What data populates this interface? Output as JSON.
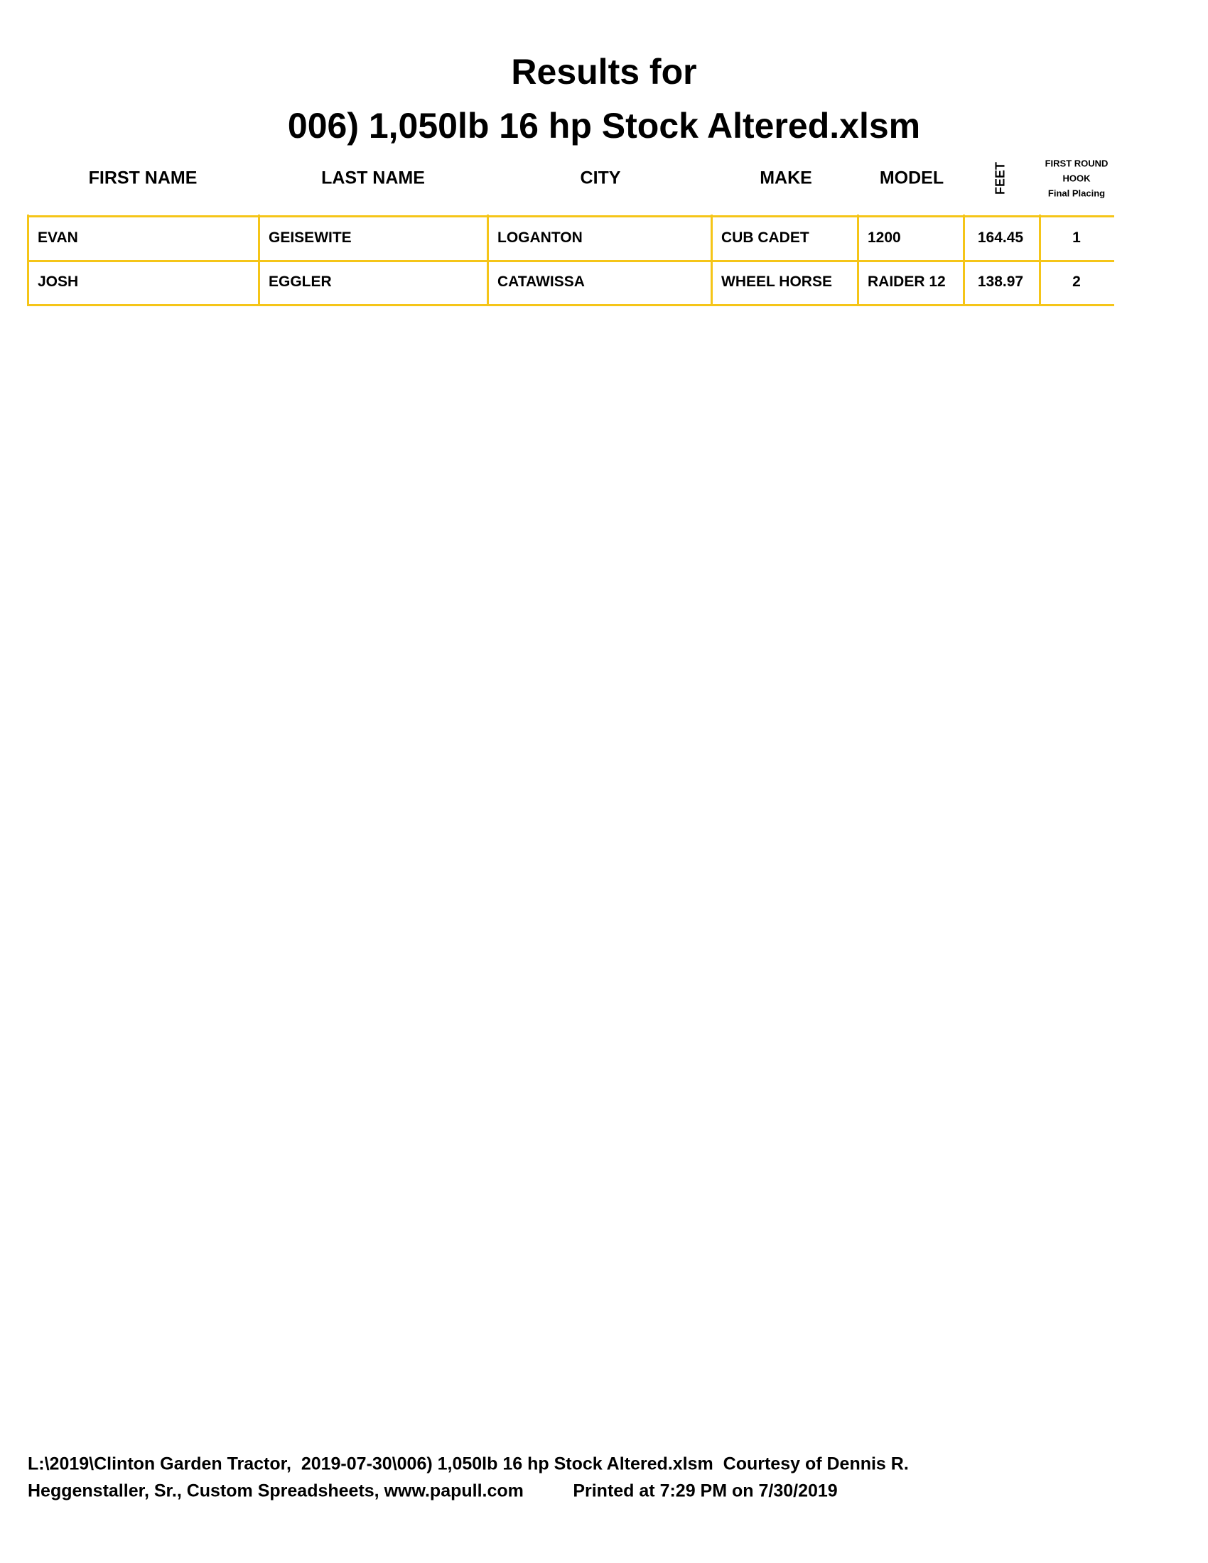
{
  "header": {
    "title_lines": [
      "Results for",
      "006) 1,050lb 16 hp Stock Altered.xlsm"
    ]
  },
  "table": {
    "columns": [
      "FIRST NAME",
      "LAST NAME",
      "CITY",
      "MAKE",
      "MODEL",
      "FEET"
    ],
    "placing_header": [
      "FIRST ROUND",
      "HOOK",
      "Final Placing"
    ],
    "rows": [
      [
        "EVAN",
        "GEISEWITE",
        "LOGANTON",
        "CUB CADET",
        "1200",
        164.45,
        1
      ],
      [
        "JOSH",
        "EGGLER",
        "CATAWISSA",
        "WHEEL HORSE",
        "RAIDER 12",
        138.97,
        2
      ]
    ]
  },
  "footer": {
    "lines": [
      "L:\\2019\\Clinton Garden Tractor,  2019-07-30\\006) 1,050lb 16 hp Stock Altered.xlsm  Courtesy of Dennis R.",
      "Heggenstaller, Sr., Custom Spreadsheets, www.papull.com          Printed at 7:29 PM on 7/30/2019"
    ]
  }
}
